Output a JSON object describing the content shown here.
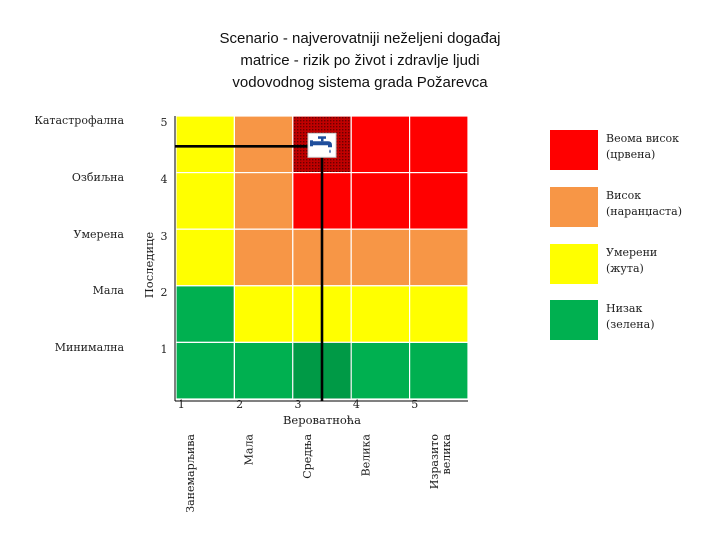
{
  "title": {
    "line1": "Scenario - najverovatniji neželjeni događaj",
    "line2": "matrice - rizik po život i zdravlje ljudi",
    "line3": "vodovodnog sistema grada Požarevca"
  },
  "colors": {
    "red": "#ff0000",
    "orange": "#f79646",
    "yellow": "#ffff00",
    "green": "#00b050",
    "marker_icon": "#1f4e9c"
  },
  "chart_data": {
    "type": "heatmap",
    "y_axis_title": "Последице",
    "x_axis_title": "Вероватноћа",
    "rows": [
      {
        "label": "Катастрофална",
        "value": "5"
      },
      {
        "label": "Озбиљна",
        "value": "4"
      },
      {
        "label": "Умерена",
        "value": "3"
      },
      {
        "label": "Мала",
        "value": "2"
      },
      {
        "label": "Минимална",
        "value": "1"
      }
    ],
    "columns": [
      {
        "label_lines": [
          "Занемарљива"
        ],
        "value": "1"
      },
      {
        "label_lines": [
          "Мала"
        ],
        "value": "2"
      },
      {
        "label_lines": [
          "Средња"
        ],
        "value": "3"
      },
      {
        "label_lines": [
          "Велика"
        ],
        "value": "4"
      },
      {
        "label_lines": [
          "Изразито",
          "велика"
        ],
        "value": "5"
      }
    ],
    "cells": [
      [
        "yellow",
        "orange",
        "red",
        "red",
        "red"
      ],
      [
        "yellow",
        "orange",
        "red",
        "red",
        "red"
      ],
      [
        "yellow",
        "orange",
        "orange",
        "orange",
        "orange"
      ],
      [
        "green",
        "yellow",
        "yellow",
        "yellow",
        "yellow"
      ],
      [
        "green",
        "green",
        "green",
        "green",
        "green"
      ]
    ],
    "highlighted_cell": {
      "consequence": 5,
      "probability": 3
    },
    "marker_icon": "water-tap-icon"
  },
  "legend": [
    {
      "color_key": "red",
      "line1": "Веома висок",
      "line2": "(црвена)"
    },
    {
      "color_key": "orange",
      "line1": "Висок",
      "line2": "(наранџаста)"
    },
    {
      "color_key": "yellow",
      "line1": "Умерени",
      "line2": "(жута)"
    },
    {
      "color_key": "green",
      "line1": "Низак",
      "line2": "(зелена)"
    }
  ]
}
